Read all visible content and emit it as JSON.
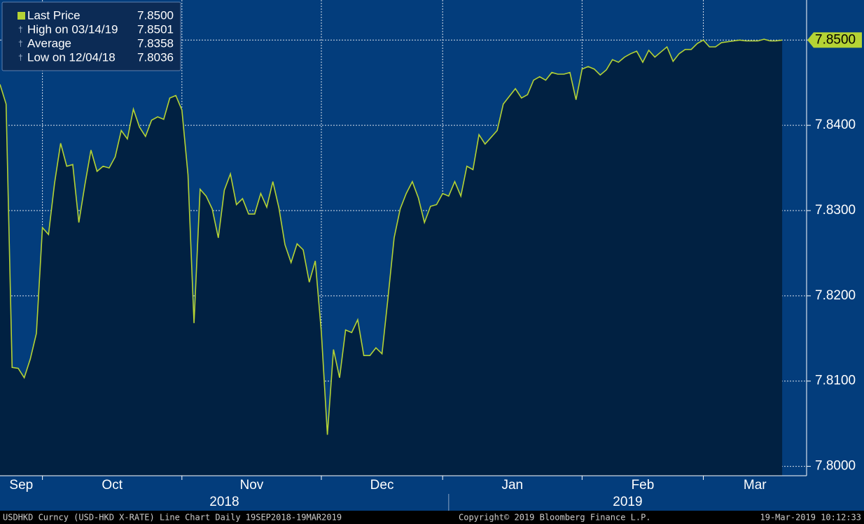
{
  "chart_data": {
    "type": "line",
    "categories": [
      "Sep",
      null,
      null,
      null,
      null,
      null,
      null,
      "Oct",
      null,
      null,
      null,
      null,
      null,
      null,
      null,
      null,
      null,
      null,
      null,
      null,
      null,
      null,
      null,
      null,
      null,
      null,
      null,
      null,
      null,
      null,
      "Nov",
      null,
      null,
      null,
      null,
      null,
      null,
      null,
      null,
      null,
      null,
      null,
      null,
      null,
      null,
      null,
      null,
      null,
      null,
      null,
      null,
      null,
      null,
      "Dec",
      null,
      null,
      null,
      null,
      null,
      null,
      null,
      null,
      null,
      null,
      null,
      null,
      null,
      null,
      null,
      null,
      null,
      null,
      null,
      "Jan",
      null,
      null,
      null,
      null,
      null,
      null,
      null,
      null,
      null,
      null,
      null,
      null,
      null,
      null,
      null,
      null,
      null,
      null,
      null,
      null,
      null,
      null,
      "Feb",
      null,
      null,
      null,
      null,
      null,
      null,
      null,
      null,
      null,
      null,
      null,
      null,
      null,
      null,
      null,
      null,
      null,
      null,
      null,
      "Mar",
      null,
      null,
      null,
      null,
      null,
      null,
      null,
      null,
      null,
      null,
      null,
      null,
      null
    ],
    "year_groups": [
      {
        "label": "2018",
        "start": 0
      },
      {
        "label": "2019",
        "start": 74
      }
    ],
    "series": [
      {
        "name": "Last Price",
        "color": "#b5d334",
        "values": [
          7.8448,
          7.8425,
          7.8116,
          7.8115,
          7.8104,
          7.8126,
          7.8156,
          7.828,
          7.8272,
          7.8332,
          7.8379,
          7.8352,
          7.8354,
          7.8286,
          7.833,
          7.8371,
          7.8346,
          7.8352,
          7.835,
          7.8363,
          7.8394,
          7.8384,
          7.8419,
          7.8398,
          7.8387,
          7.8406,
          7.841,
          7.8407,
          7.8432,
          7.8435,
          7.8418,
          7.8342,
          7.8168,
          7.8325,
          7.8317,
          7.8302,
          7.8268,
          7.8324,
          7.8343,
          7.8307,
          7.8314,
          7.8296,
          7.8296,
          7.832,
          7.8304,
          7.8334,
          7.8303,
          7.826,
          7.8239,
          7.8261,
          7.8254,
          7.8216,
          7.8241,
          7.8157,
          7.8037,
          7.8137,
          7.8104,
          7.816,
          7.8157,
          7.8172,
          7.813,
          7.813,
          7.8139,
          7.8132,
          7.8198,
          7.8268,
          7.8302,
          7.832,
          7.8334,
          7.8315,
          7.8286,
          7.8305,
          7.8307,
          7.832,
          7.8317,
          7.8334,
          7.8317,
          7.8352,
          7.8348,
          7.8389,
          7.8378,
          7.8386,
          7.8394,
          7.8425,
          7.8434,
          7.8443,
          7.8432,
          7.8436,
          7.8453,
          7.8457,
          7.8453,
          7.8462,
          7.846,
          7.846,
          7.8462,
          7.843,
          7.8466,
          7.8469,
          7.8466,
          7.8459,
          7.8465,
          7.8477,
          7.8474,
          7.848,
          7.8484,
          7.8487,
          7.8474,
          7.8488,
          7.848,
          7.8486,
          7.8492,
          7.8475,
          7.8484,
          7.8489,
          7.8489,
          7.8496,
          7.85,
          7.8492,
          7.8492,
          7.8497,
          7.8498,
          7.8499,
          7.85,
          7.8499,
          7.8499,
          7.8499,
          7.8501,
          7.8499,
          7.8499,
          7.85
        ]
      }
    ],
    "legend_stats": [
      {
        "name": "Last Price",
        "value": 7.85,
        "label": "7.8500"
      },
      {
        "name": "High on 03/14/19",
        "value": 7.8501,
        "label": "7.8501"
      },
      {
        "name": "Average",
        "value": 7.8358,
        "label": "7.8358"
      },
      {
        "name": "Low on 12/04/18",
        "value": 7.8036,
        "label": "7.8036"
      }
    ],
    "ylim": [
      7.7989,
      7.8547
    ],
    "yticks": [
      {
        "value": 7.8,
        "label": "7.8000"
      },
      {
        "value": 7.81,
        "label": "7.8100"
      },
      {
        "value": 7.82,
        "label": "7.8200"
      },
      {
        "value": 7.83,
        "label": "7.8300"
      },
      {
        "value": 7.84,
        "label": "7.8400"
      },
      {
        "value": 7.85,
        "label": "7.8500"
      }
    ],
    "grid": true,
    "footer": {
      "description": "USDHKD Curncy (USD-HKD X-RATE) Line Chart  Daily 19SEP2018-19MAR2019",
      "copyright": "Copyright© 2019 Bloomberg Finance L.P.",
      "timestamp": "19-Mar-2019 10:12:33"
    }
  }
}
